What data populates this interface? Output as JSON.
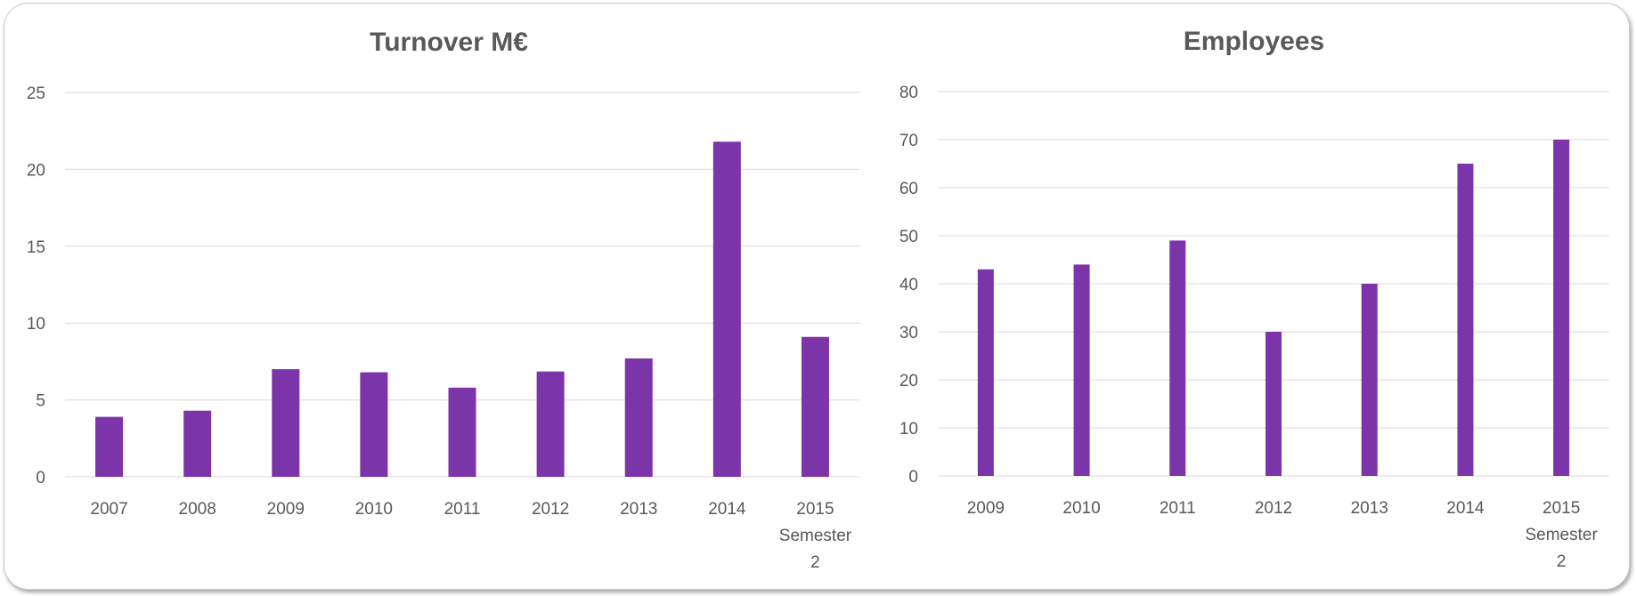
{
  "chart_data": [
    {
      "type": "bar",
      "title": "Turnover M€",
      "categories": [
        [
          "2007"
        ],
        [
          "2008"
        ],
        [
          "2009"
        ],
        [
          "2010"
        ],
        [
          "2011"
        ],
        [
          "2012"
        ],
        [
          "2013"
        ],
        [
          "2014"
        ],
        [
          "2015",
          "Semester",
          "2"
        ]
      ],
      "values": [
        3.9,
        4.3,
        7.0,
        6.8,
        5.8,
        6.85,
        7.7,
        21.8,
        9.1
      ],
      "ylim": [
        0,
        25
      ],
      "yticks": [
        0,
        5,
        10,
        15,
        20,
        25
      ],
      "grid": true,
      "legend": "none",
      "colors": {
        "bar": "#7b35a8",
        "grid": "#d9d9d9",
        "text": "#595959"
      }
    },
    {
      "type": "bar",
      "title": "Employees",
      "categories": [
        [
          "2009"
        ],
        [
          "2010"
        ],
        [
          "2011"
        ],
        [
          "2012"
        ],
        [
          "2013"
        ],
        [
          "2014"
        ],
        [
          "2015",
          "Semester",
          "2"
        ]
      ],
      "values": [
        43,
        44,
        49,
        30,
        40,
        65,
        70
      ],
      "ylim": [
        0,
        80
      ],
      "yticks": [
        0,
        10,
        20,
        30,
        40,
        50,
        60,
        70,
        80
      ],
      "grid": true,
      "legend": "none",
      "colors": {
        "bar": "#7b35a8",
        "grid": "#d9d9d9",
        "text": "#595959"
      }
    }
  ]
}
